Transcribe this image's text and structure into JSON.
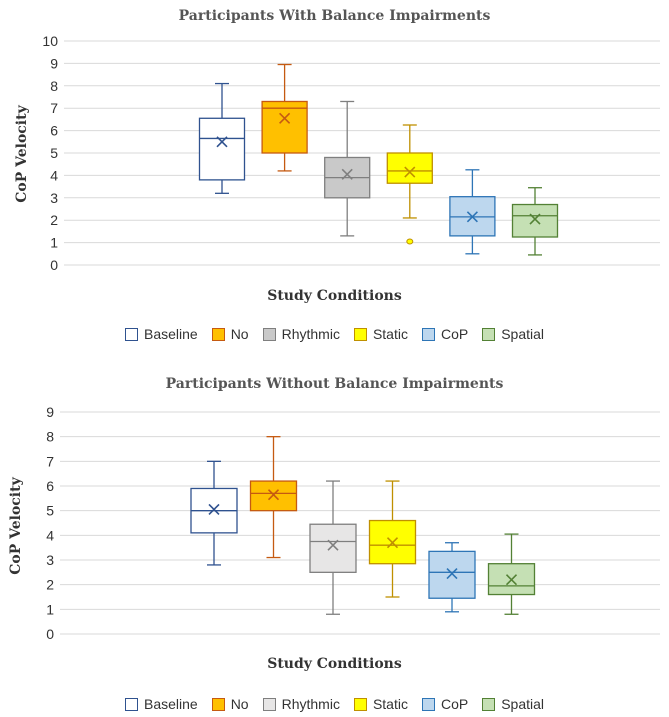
{
  "chart_data": [
    {
      "type": "box",
      "title": "Participants With Balance Impairments",
      "xlabel": "Study Conditions",
      "ylabel": "CoP Velocity",
      "ylim": [
        0,
        10
      ],
      "yticks": [
        0,
        1,
        2,
        3,
        4,
        5,
        6,
        7,
        8,
        9,
        10
      ],
      "grid": true,
      "legend_position": "bottom",
      "series": [
        {
          "name": "Baseline",
          "fill": "#ffffff",
          "stroke": "#2f528f",
          "min": 3.2,
          "q1": 3.8,
          "median": 5.65,
          "q3": 6.55,
          "max": 8.1,
          "mean": 5.5,
          "outliers": []
        },
        {
          "name": "No",
          "fill": "#ffc000",
          "stroke": "#c55a11",
          "min": 4.2,
          "q1": 5.0,
          "median": 7.0,
          "q3": 7.3,
          "max": 8.95,
          "mean": 6.55,
          "outliers": []
        },
        {
          "name": "Rhythmic",
          "fill": "#c9c9c9",
          "stroke": "#7f7f7f",
          "min": 1.3,
          "q1": 3.0,
          "median": 3.9,
          "q3": 4.8,
          "max": 7.3,
          "mean": 4.05,
          "outliers": []
        },
        {
          "name": "Static",
          "fill": "#ffff00",
          "stroke": "#bf9000",
          "min": 2.1,
          "q1": 3.65,
          "median": 4.2,
          "q3": 5.0,
          "max": 6.25,
          "mean": 4.15,
          "outliers": [
            1.05
          ]
        },
        {
          "name": "CoP",
          "fill": "#bdd7ee",
          "stroke": "#2e75b6",
          "min": 0.5,
          "q1": 1.3,
          "median": 2.15,
          "q3": 3.05,
          "max": 4.25,
          "mean": 2.15,
          "outliers": []
        },
        {
          "name": "Spatial",
          "fill": "#c5e0b4",
          "stroke": "#538135",
          "min": 0.45,
          "q1": 1.25,
          "median": 2.2,
          "q3": 2.7,
          "max": 3.45,
          "mean": 2.05,
          "outliers": []
        }
      ]
    },
    {
      "type": "box",
      "title": "Participants Without Balance Impairments",
      "xlabel": "Study Conditions",
      "ylabel": "CoP Velocity",
      "ylim": [
        0,
        9
      ],
      "yticks": [
        0,
        1,
        2,
        3,
        4,
        5,
        6,
        7,
        8,
        9
      ],
      "grid": true,
      "legend_position": "bottom",
      "series": [
        {
          "name": "Baseline",
          "fill": "#ffffff",
          "stroke": "#2f528f",
          "min": 2.8,
          "q1": 4.1,
          "median": 5.0,
          "q3": 5.9,
          "max": 7.0,
          "mean": 5.05,
          "outliers": []
        },
        {
          "name": "No",
          "fill": "#ffc000",
          "stroke": "#c55a11",
          "min": 3.1,
          "q1": 5.0,
          "median": 5.7,
          "q3": 6.2,
          "max": 8.0,
          "mean": 5.65,
          "outliers": []
        },
        {
          "name": "Rhythmic",
          "fill": "#e7e6e6",
          "stroke": "#7f7f7f",
          "min": 0.8,
          "q1": 2.5,
          "median": 3.75,
          "q3": 4.45,
          "max": 6.2,
          "mean": 3.6,
          "outliers": []
        },
        {
          "name": "Static",
          "fill": "#ffff00",
          "stroke": "#bf9000",
          "min": 1.5,
          "q1": 2.85,
          "median": 3.6,
          "q3": 4.6,
          "max": 6.2,
          "mean": 3.7,
          "outliers": []
        },
        {
          "name": "CoP",
          "fill": "#bdd7ee",
          "stroke": "#2e75b6",
          "min": 0.9,
          "q1": 1.45,
          "median": 2.5,
          "q3": 3.35,
          "max": 3.7,
          "mean": 2.45,
          "outliers": []
        },
        {
          "name": "Spatial",
          "fill": "#c5e0b4",
          "stroke": "#538135",
          "min": 0.8,
          "q1": 1.6,
          "median": 1.95,
          "q3": 2.85,
          "max": 4.05,
          "mean": 2.2,
          "outliers": []
        }
      ]
    }
  ]
}
